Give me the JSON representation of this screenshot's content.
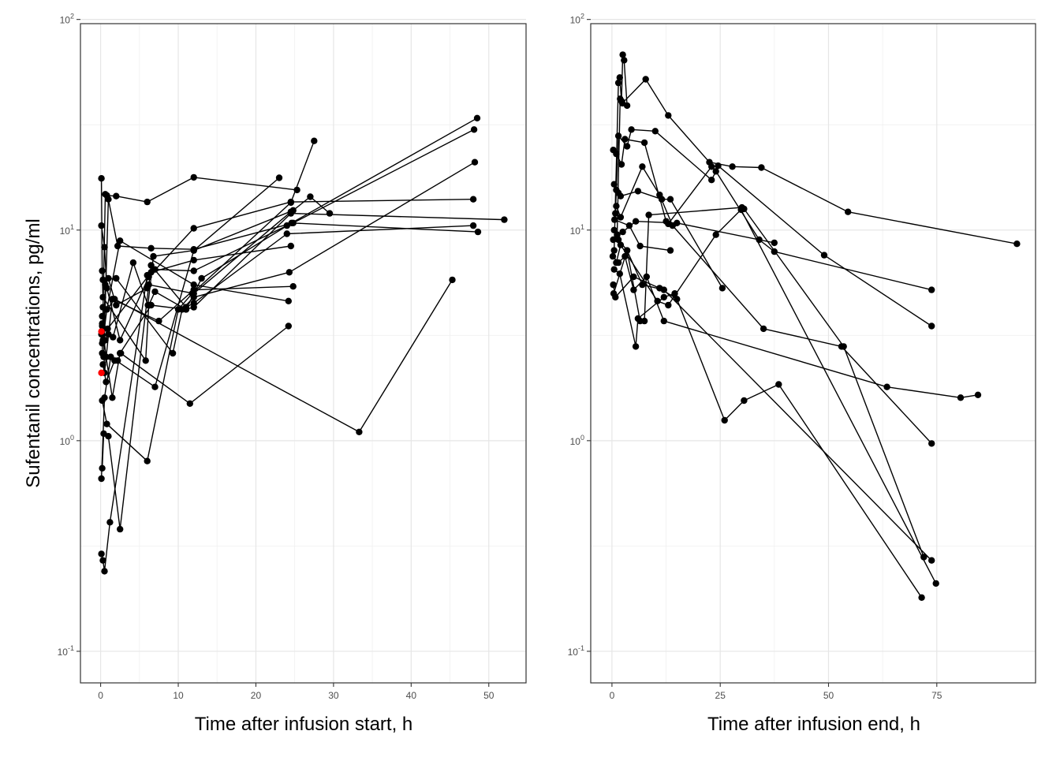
{
  "chart_data": [
    {
      "type": "line",
      "xlabel": "Time after infusion start, h",
      "ylabel": "Sufentanil concentrations, pg/ml",
      "xlim": [
        -2.6,
        54.8
      ],
      "ylim_log10": [
        -1.15,
        1.98
      ],
      "y_scale": "log10",
      "x_ticks": [
        0,
        10,
        20,
        30,
        40,
        50
      ],
      "x_tick_labels": [
        "0",
        "10",
        "20",
        "30",
        "40",
        "50"
      ],
      "y_ticks": [
        0.1,
        1,
        10,
        100
      ],
      "y_tick_labels": [
        {
          "base": "10",
          "exp": "-1"
        },
        {
          "base": "10",
          "exp": "0"
        },
        {
          "base": "10",
          "exp": "1"
        },
        {
          "base": "10",
          "exp": "2"
        }
      ],
      "grid": true,
      "series": [
        {
          "points": [
            [
              0.1,
              17.6
            ],
            [
              0.2,
              6.4
            ],
            [
              0.3,
              4.8
            ],
            [
              5.8,
              2.4
            ],
            [
              6.2,
              4.4
            ],
            [
              7.0,
              5.1
            ],
            [
              11.0,
              4.2
            ],
            [
              12.0,
              4.3
            ],
            [
              24.5,
              12.0
            ],
            [
              52.0,
              11.2
            ]
          ]
        },
        {
          "points": [
            [
              0.1,
              10.5
            ],
            [
              0.5,
              8.3
            ],
            [
              0.8,
              5.3
            ],
            [
              2.5,
              3.0
            ],
            [
              6.2,
              6.0
            ],
            [
              12.0,
              10.2
            ],
            [
              24.5,
              13.6
            ],
            [
              48.0,
              14.0
            ]
          ]
        },
        {
          "points": [
            [
              0.2,
              2.6
            ],
            [
              0.6,
              14.8
            ],
            [
              0.8,
              14.6
            ],
            [
              2.0,
              14.5
            ],
            [
              6.0,
              13.6
            ],
            [
              12.0,
              17.8
            ],
            [
              25.3,
              15.5
            ]
          ]
        },
        {
          "points": [
            [
              0.4,
              2.5
            ],
            [
              1.0,
              14.0
            ],
            [
              2.2,
              8.4
            ],
            [
              6.5,
              8.2
            ],
            [
              12.0,
              8.1
            ],
            [
              24.8,
              10.8
            ],
            [
              48.1,
              30.0
            ]
          ]
        },
        {
          "points": [
            [
              0.1,
              3.2
            ],
            [
              0.3,
              3.0
            ],
            [
              0.8,
              4.2
            ],
            [
              2.5,
              8.9
            ],
            [
              12.0,
              5.5
            ],
            [
              24.2,
              4.6
            ]
          ]
        },
        {
          "points": [
            [
              0.2,
              0.74
            ],
            [
              0.4,
              1.08
            ],
            [
              1.0,
              1.05
            ],
            [
              2.5,
              0.38
            ],
            [
              6.5,
              6.8
            ],
            [
              11.0,
              4.3
            ],
            [
              12.0,
              4.5
            ],
            [
              24.0,
              9.6
            ],
            [
              48.0,
              10.5
            ]
          ]
        },
        {
          "points": [
            [
              0.1,
              0.29
            ],
            [
              0.3,
              0.27
            ],
            [
              0.5,
              0.24
            ],
            [
              1.2,
              0.41
            ],
            [
              6.0,
              6.1
            ],
            [
              7.0,
              6.5
            ],
            [
              12.0,
              6.4
            ],
            [
              24.0,
              10.5
            ],
            [
              48.5,
              34.0
            ]
          ]
        },
        {
          "points": [
            [
              0.2,
              3.6
            ],
            [
              0.7,
              2.5
            ],
            [
              1.5,
              1.6
            ],
            [
              2.5,
              2.6
            ],
            [
              6.5,
              4.4
            ],
            [
              11.0,
              4.2
            ],
            [
              13.0,
              5.9
            ],
            [
              24.6,
              10.8
            ],
            [
              48.6,
              9.8
            ]
          ]
        },
        {
          "points": [
            [
              0.3,
              5.8
            ],
            [
              2.0,
              5.9
            ],
            [
              9.3,
              2.6
            ],
            [
              10.5,
              4.2
            ],
            [
              12.0,
              4.8
            ],
            [
              24.3,
              6.3
            ],
            [
              48.2,
              21.0
            ]
          ]
        },
        {
          "points": [
            [
              0.2,
              2.9
            ],
            [
              0.9,
              3.4
            ],
            [
              6.5,
              6.3
            ],
            [
              12.0,
              7.2
            ],
            [
              24.5,
              8.4
            ]
          ]
        },
        {
          "points": [
            [
              0.1,
              0.66
            ],
            [
              0.5,
              1.6
            ],
            [
              1.3,
              2.5
            ],
            [
              7.0,
              1.8
            ],
            [
              12.0,
              8.0
            ],
            [
              24.8,
              12.4
            ],
            [
              27.0,
              14.4
            ],
            [
              29.5,
              12.0
            ]
          ]
        },
        {
          "points": [
            [
              0.2,
              1.55
            ],
            [
              0.8,
              1.2
            ],
            [
              6.0,
              0.8
            ],
            [
              10.0,
              4.2
            ],
            [
              11.8,
              5.0
            ],
            [
              24.5,
              13.5
            ],
            [
              27.5,
              26.5
            ]
          ]
        },
        {
          "points": [
            [
              0.3,
              4.3
            ],
            [
              0.5,
              2.1
            ],
            [
              1.5,
              4.7
            ],
            [
              7.5,
              3.7
            ],
            [
              12.0,
              5.2
            ],
            [
              24.8,
              5.4
            ]
          ]
        },
        {
          "points": [
            [
              0.2,
              3.9
            ],
            [
              1.8,
              4.7
            ],
            [
              33.3,
              1.1
            ],
            [
              45.3,
              5.8
            ]
          ]
        },
        {
          "points": [
            [
              0.3,
              2.3
            ],
            [
              0.7,
              1.9
            ],
            [
              1.8,
              2.4
            ],
            [
              2.2,
              2.4
            ],
            [
              2.6,
              2.6
            ],
            [
              11.5,
              1.5
            ],
            [
              24.2,
              3.5
            ]
          ]
        },
        {
          "points": [
            [
              0.2,
              3.5
            ],
            [
              0.6,
              3.0
            ],
            [
              1.0,
              3.2
            ],
            [
              1.6,
              3.1
            ],
            [
              4.2,
              7.0
            ],
            [
              6.1,
              4.4
            ],
            [
              6.8,
              7.5
            ],
            [
              12.0,
              8.0
            ],
            [
              23.0,
              17.7
            ]
          ]
        },
        {
          "points": [
            [
              0.4,
              3.4
            ],
            [
              0.6,
              5.5
            ],
            [
              1.0,
              5.9
            ],
            [
              2.0,
              4.4
            ],
            [
              6.0,
              5.3
            ],
            [
              6.2,
              5.5
            ],
            [
              12.0,
              5.0
            ],
            [
              24.5,
              12.2
            ]
          ]
        }
      ],
      "points_highlight": [
        [
          0.1,
          3.3
        ],
        [
          0.1,
          2.1
        ]
      ],
      "highlight_color": "#ff0000",
      "series_color": "#000000"
    },
    {
      "type": "line",
      "xlabel": "Time after infusion end, h",
      "xlim": [
        -4.9,
        97.8
      ],
      "ylim_log10": [
        -1.15,
        1.98
      ],
      "y_scale": "log10",
      "x_ticks": [
        0,
        25,
        50,
        75
      ],
      "x_tick_labels": [
        "0",
        "25",
        "50",
        "75"
      ],
      "y_ticks": [
        0.1,
        1,
        10,
        100
      ],
      "y_tick_labels": [
        {
          "base": "10",
          "exp": "-1"
        },
        {
          "base": "10",
          "exp": "0"
        },
        {
          "base": "10",
          "exp": "1"
        },
        {
          "base": "10",
          "exp": "2"
        }
      ],
      "grid": true,
      "series": [
        {
          "points": [
            [
              0.5,
              8.0
            ],
            [
              1.5,
              50.0
            ],
            [
              1.8,
              53.0
            ],
            [
              2.2,
              41.0
            ],
            [
              2.5,
              68.0
            ],
            [
              2.8,
              64.0
            ],
            [
              3.5,
              39.0
            ]
          ]
        },
        {
          "points": [
            [
              1.2,
              9.5
            ],
            [
              1.9,
              42.0
            ],
            [
              2.4,
              40.0
            ],
            [
              7.8,
              52.0
            ],
            [
              13.0,
              35.0
            ],
            [
              22.5,
              21.0
            ],
            [
              27.8,
              20.0
            ],
            [
              34.5,
              19.8
            ],
            [
              54.5,
              12.2
            ],
            [
              93.5,
              8.6
            ]
          ]
        },
        {
          "points": [
            [
              0.8,
              12.0
            ],
            [
              1.5,
              28.0
            ],
            [
              3.5,
              25.0
            ],
            [
              4.5,
              30.0
            ],
            [
              10.0,
              29.5
            ],
            [
              23.0,
              17.3
            ],
            [
              24.0,
              19.0
            ],
            [
              34.0,
              9.0
            ],
            [
              37.5,
              7.9
            ],
            [
              73.8,
              5.2
            ]
          ]
        },
        {
          "points": [
            [
              0.3,
              24.0
            ],
            [
              1.0,
              23.0
            ],
            [
              2.2,
              20.5
            ],
            [
              3.0,
              27.0
            ],
            [
              7.5,
              26.0
            ],
            [
              12.5,
              11.0
            ],
            [
              13.0,
              10.7
            ],
            [
              23.0,
              20.0
            ],
            [
              24.5,
              20.2
            ],
            [
              49.0,
              7.6
            ],
            [
              73.8,
              3.5
            ]
          ]
        },
        {
          "points": [
            [
              0.5,
              16.5
            ],
            [
              1.0,
              15.5
            ],
            [
              1.5,
              15.0
            ],
            [
              2.0,
              14.5
            ],
            [
              6.0,
              15.3
            ],
            [
              11.5,
              14.0
            ],
            [
              13.5,
              14.0
            ],
            [
              25.5,
              5.3
            ]
          ]
        },
        {
          "points": [
            [
              1.0,
              13.0
            ],
            [
              2.0,
              11.5
            ],
            [
              7.0,
              20.0
            ],
            [
              11.0,
              14.7
            ],
            [
              14.0,
              10.5
            ],
            [
              35.0,
              3.4
            ],
            [
              53.0,
              2.8
            ],
            [
              73.8,
              0.97
            ]
          ]
        },
        {
          "points": [
            [
              0.3,
              9.0
            ],
            [
              1.2,
              9.5
            ],
            [
              2.5,
              9.8
            ],
            [
              5.5,
              11.0
            ],
            [
              15.0,
              10.8
            ],
            [
              37.5,
              8.7
            ]
          ]
        },
        {
          "points": [
            [
              0.5,
              10.0
            ],
            [
              1.5,
              9.0
            ],
            [
              3.5,
              8.0
            ],
            [
              6.5,
              3.7
            ],
            [
              7.5,
              3.7
            ],
            [
              8.5,
              11.8
            ],
            [
              30.0,
              12.8
            ],
            [
              30.5,
              12.6
            ],
            [
              53.5,
              2.8
            ],
            [
              72.0,
              0.28
            ]
          ]
        },
        {
          "points": [
            [
              0.2,
              7.5
            ],
            [
              1.5,
              7.0
            ],
            [
              3.0,
              7.5
            ],
            [
              5.0,
              5.2
            ],
            [
              8.0,
              6.0
            ],
            [
              12.0,
              3.7
            ],
            [
              63.5,
              1.8
            ],
            [
              80.5,
              1.6
            ],
            [
              84.5,
              1.65
            ]
          ]
        },
        {
          "points": [
            [
              0.5,
              6.5
            ],
            [
              1.8,
              6.2
            ],
            [
              5.5,
              2.8
            ],
            [
              6.0,
              3.8
            ],
            [
              12.0,
              4.8
            ],
            [
              14.5,
              5.0
            ],
            [
              26.0,
              1.25
            ],
            [
              30.5,
              1.55
            ],
            [
              38.5,
              1.85
            ],
            [
              71.5,
              0.18
            ]
          ]
        },
        {
          "points": [
            [
              0.3,
              5.5
            ],
            [
              0.8,
              4.8
            ],
            [
              5.0,
              6.0
            ],
            [
              11.0,
              5.3
            ],
            [
              15.0,
              4.7
            ]
          ]
        },
        {
          "points": [
            [
              0.4,
              5.0
            ],
            [
              3.5,
              8.0
            ],
            [
              7.0,
              5.5
            ],
            [
              12.0,
              5.2
            ],
            [
              73.8,
              0.27
            ]
          ]
        },
        {
          "points": [
            [
              1.0,
              7.0
            ],
            [
              2.0,
              8.5
            ],
            [
              10.5,
              4.6
            ],
            [
              13.0,
              4.4
            ],
            [
              24.0,
              9.5
            ],
            [
              29.8,
              12.5
            ],
            [
              74.8,
              0.21
            ]
          ]
        },
        {
          "points": [
            [
              0.6,
              11.2
            ],
            [
              4.0,
              10.5
            ],
            [
              6.5,
              8.4
            ],
            [
              13.5,
              8.0
            ]
          ]
        }
      ],
      "series_color": "#000000"
    }
  ]
}
